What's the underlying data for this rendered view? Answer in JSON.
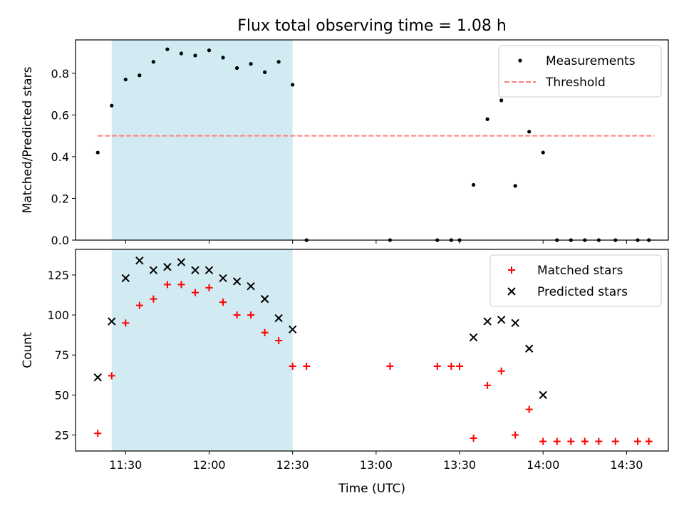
{
  "title": "Flux total observing time = 1.08 h",
  "chart_data": [
    {
      "type": "scatter",
      "panel": "top",
      "ylabel": "Matched/Predicted stars",
      "xlabel": "",
      "xlim": [
        "11:12",
        "14:45"
      ],
      "ylim": [
        0,
        0.96
      ],
      "yticks": [
        0.0,
        0.2,
        0.4,
        0.6,
        0.8
      ],
      "ytick_labels": [
        "0.0",
        "0.2",
        "0.4",
        "0.6",
        "0.8"
      ],
      "shaded_interval": {
        "start": "11:25",
        "end": "12:30",
        "color": "#add8e6"
      },
      "threshold": {
        "name": "Threshold",
        "value": 0.5,
        "x_start": "11:20",
        "x_end": "14:40",
        "color": "#ff7f7f"
      },
      "series": [
        {
          "name": "Measurements",
          "marker": "dot",
          "color": "#000000",
          "points": [
            [
              "11:20",
              0.42
            ],
            [
              "11:25",
              0.645
            ],
            [
              "11:30",
              0.77
            ],
            [
              "11:35",
              0.79
            ],
            [
              "11:40",
              0.855
            ],
            [
              "11:45",
              0.915
            ],
            [
              "11:50",
              0.895
            ],
            [
              "11:55",
              0.885
            ],
            [
              "12:00",
              0.91
            ],
            [
              "12:05",
              0.875
            ],
            [
              "12:10",
              0.825
            ],
            [
              "12:15",
              0.845
            ],
            [
              "12:20",
              0.805
            ],
            [
              "12:25",
              0.855
            ],
            [
              "12:30",
              0.745
            ],
            [
              "12:35",
              0.0
            ],
            [
              "13:05",
              0.0
            ],
            [
              "13:22",
              0.0
            ],
            [
              "13:27",
              0.0
            ],
            [
              "13:30",
              0.0
            ],
            [
              "13:35",
              0.265
            ],
            [
              "13:40",
              0.58
            ],
            [
              "13:45",
              0.67
            ],
            [
              "13:50",
              0.26
            ],
            [
              "13:55",
              0.52
            ],
            [
              "14:00",
              0.42
            ],
            [
              "14:05",
              0.0
            ],
            [
              "14:10",
              0.0
            ],
            [
              "14:15",
              0.0
            ],
            [
              "14:20",
              0.0
            ],
            [
              "14:26",
              0.0
            ],
            [
              "14:34",
              0.0
            ],
            [
              "14:38",
              0.0
            ]
          ]
        }
      ],
      "legend": {
        "placement": "top-right",
        "entries": [
          {
            "label": "Measurements",
            "marker": "dot",
            "color": "#000000"
          },
          {
            "label": "Threshold",
            "marker": "dashed-line",
            "color": "#ff7f7f"
          }
        ]
      }
    },
    {
      "type": "scatter",
      "panel": "bottom",
      "ylabel": "Count",
      "xlabel": "Time (UTC)",
      "xlim": [
        "11:12",
        "14:45"
      ],
      "ylim": [
        15,
        141
      ],
      "yticks": [
        25,
        50,
        75,
        100,
        125
      ],
      "ytick_labels": [
        "25",
        "50",
        "75",
        "100",
        "125"
      ],
      "xticks": [
        "11:30",
        "12:00",
        "12:30",
        "13:00",
        "13:30",
        "14:00",
        "14:30"
      ],
      "xtick_labels": [
        "11:30",
        "12:00",
        "12:30",
        "13:00",
        "13:30",
        "14:00",
        "14:30"
      ],
      "shaded_interval": {
        "start": "11:25",
        "end": "12:30",
        "color": "#add8e6"
      },
      "series": [
        {
          "name": "Matched stars",
          "marker": "plus",
          "color": "#ff0000",
          "points": [
            [
              "11:20",
              26
            ],
            [
              "11:25",
              62
            ],
            [
              "11:30",
              95
            ],
            [
              "11:35",
              106
            ],
            [
              "11:40",
              110
            ],
            [
              "11:45",
              119
            ],
            [
              "11:50",
              119
            ],
            [
              "11:55",
              114
            ],
            [
              "12:00",
              117
            ],
            [
              "12:05",
              108
            ],
            [
              "12:10",
              100
            ],
            [
              "12:15",
              100
            ],
            [
              "12:20",
              89
            ],
            [
              "12:25",
              84
            ],
            [
              "12:30",
              68
            ],
            [
              "12:35",
              68
            ],
            [
              "13:05",
              68
            ],
            [
              "13:22",
              68
            ],
            [
              "13:27",
              68
            ],
            [
              "13:30",
              68
            ],
            [
              "13:35",
              23
            ],
            [
              "13:40",
              56
            ],
            [
              "13:45",
              65
            ],
            [
              "13:50",
              25
            ],
            [
              "13:55",
              41
            ],
            [
              "14:00",
              21
            ],
            [
              "14:05",
              21
            ],
            [
              "14:10",
              21
            ],
            [
              "14:15",
              21
            ],
            [
              "14:20",
              21
            ],
            [
              "14:26",
              21
            ],
            [
              "14:34",
              21
            ],
            [
              "14:38",
              21
            ]
          ]
        },
        {
          "name": "Predicted stars",
          "marker": "x",
          "color": "#000000",
          "points": [
            [
              "11:20",
              61
            ],
            [
              "11:25",
              96
            ],
            [
              "11:30",
              123
            ],
            [
              "11:35",
              134
            ],
            [
              "11:40",
              128
            ],
            [
              "11:45",
              130
            ],
            [
              "11:50",
              133
            ],
            [
              "11:55",
              128
            ],
            [
              "12:00",
              128
            ],
            [
              "12:05",
              123
            ],
            [
              "12:10",
              121
            ],
            [
              "12:15",
              118
            ],
            [
              "12:20",
              110
            ],
            [
              "12:25",
              98
            ],
            [
              "12:30",
              91
            ],
            [
              "13:35",
              86
            ],
            [
              "13:40",
              96
            ],
            [
              "13:45",
              97
            ],
            [
              "13:50",
              95
            ],
            [
              "13:55",
              79
            ],
            [
              "14:00",
              50
            ]
          ]
        }
      ],
      "legend": {
        "placement": "top-right",
        "entries": [
          {
            "label": "Matched stars",
            "marker": "plus",
            "color": "#ff0000"
          },
          {
            "label": "Predicted stars",
            "marker": "x",
            "color": "#000000"
          }
        ]
      }
    }
  ]
}
